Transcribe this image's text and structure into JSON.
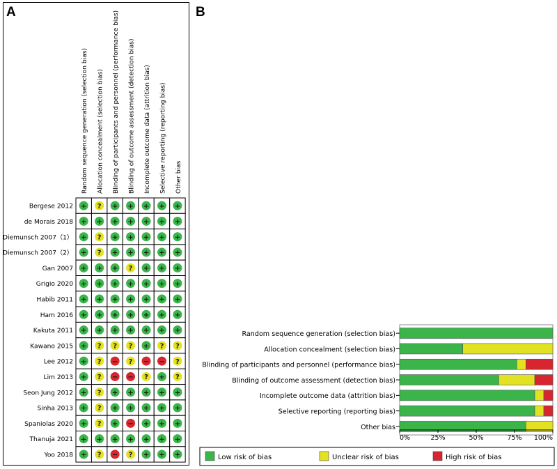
{
  "panel_a": {
    "label": "A",
    "domains": [
      "Random sequence generation (selection bias)",
      "Allocation concealment (selection bias)",
      "Blinding of participants and personnel (performance bias)",
      "Blinding of outcome assessment (detection bias)",
      "Incomplete outcome data (attrition bias)",
      "Selective reporting (reporting bias)",
      "Other bias"
    ],
    "studies": [
      {
        "name": "Bergese 2012",
        "ratings": [
          "low",
          "unclear",
          "low",
          "low",
          "low",
          "low",
          "low"
        ]
      },
      {
        "name": "de Morais 2018",
        "ratings": [
          "low",
          "low",
          "low",
          "low",
          "low",
          "low",
          "low"
        ]
      },
      {
        "name": "Diemunsch 2007（1）",
        "ratings": [
          "low",
          "unclear",
          "low",
          "low",
          "low",
          "low",
          "low"
        ]
      },
      {
        "name": "Diemunsch 2007（2）",
        "ratings": [
          "low",
          "unclear",
          "low",
          "low",
          "low",
          "low",
          "low"
        ]
      },
      {
        "name": "Gan 2007",
        "ratings": [
          "low",
          "low",
          "low",
          "unclear",
          "low",
          "low",
          "low"
        ]
      },
      {
        "name": "Grigio 2020",
        "ratings": [
          "low",
          "low",
          "low",
          "low",
          "low",
          "low",
          "low"
        ]
      },
      {
        "name": "Habib 2011",
        "ratings": [
          "low",
          "low",
          "low",
          "low",
          "low",
          "low",
          "low"
        ]
      },
      {
        "name": "Ham 2016",
        "ratings": [
          "low",
          "low",
          "low",
          "low",
          "low",
          "low",
          "low"
        ]
      },
      {
        "name": "Kakuta 2011",
        "ratings": [
          "low",
          "low",
          "low",
          "low",
          "low",
          "low",
          "low"
        ]
      },
      {
        "name": "Kawano 2015",
        "ratings": [
          "low",
          "unclear",
          "unclear",
          "unclear",
          "low",
          "unclear",
          "unclear"
        ]
      },
      {
        "name": "Lee 2012",
        "ratings": [
          "low",
          "unclear",
          "high",
          "unclear",
          "high",
          "high",
          "unclear"
        ]
      },
      {
        "name": "Lim 2013",
        "ratings": [
          "low",
          "unclear",
          "high",
          "high",
          "unclear",
          "low",
          "unclear"
        ]
      },
      {
        "name": "Seon Jung 2012",
        "ratings": [
          "low",
          "unclear",
          "low",
          "low",
          "low",
          "low",
          "low"
        ]
      },
      {
        "name": "Sinha 2013",
        "ratings": [
          "low",
          "unclear",
          "low",
          "low",
          "low",
          "low",
          "low"
        ]
      },
      {
        "name": "Spaniolas 2020",
        "ratings": [
          "low",
          "unclear",
          "low",
          "high",
          "low",
          "low",
          "low"
        ]
      },
      {
        "name": "Thanuja 2021",
        "ratings": [
          "low",
          "low",
          "low",
          "low",
          "low",
          "low",
          "low"
        ]
      },
      {
        "name": "Yoo 2018",
        "ratings": [
          "low",
          "unclear",
          "high",
          "unclear",
          "low",
          "low",
          "low"
        ]
      }
    ],
    "symbols": {
      "low": "+",
      "unclear": "?",
      "high": "−"
    }
  },
  "chart_data": {
    "type": "bar",
    "title": "B",
    "orientation": "horizontal-stacked-percent",
    "categories": [
      "Random sequence generation (selection bias)",
      "Allocation concealment (selection bias)",
      "Blinding of participants and personnel (performance bias)",
      "Blinding of outcome assessment (detection bias)",
      "Incomplete outcome data (attrition bias)",
      "Selective reporting (reporting bias)",
      "Other bias"
    ],
    "series": [
      {
        "name": "Low risk of bias",
        "color": "#3bb54a",
        "values": [
          100,
          41.2,
          76.5,
          64.7,
          88.2,
          88.2,
          82.4
        ]
      },
      {
        "name": "Unclear risk of bias",
        "color": "#e3e222",
        "values": [
          0,
          58.8,
          5.9,
          23.5,
          5.9,
          5.9,
          17.6
        ]
      },
      {
        "name": "High risk of bias",
        "color": "#d7262f",
        "values": [
          0,
          0,
          17.6,
          11.8,
          5.9,
          5.9,
          0
        ]
      }
    ],
    "xlim": [
      0,
      100
    ],
    "xticks": [
      "0%",
      "25%",
      "50%",
      "75%",
      "100%"
    ],
    "xlabel": "",
    "ylabel": "",
    "legend": "bottom"
  },
  "colors": {
    "low": "#3bb54a",
    "unclear": "#e3e222",
    "high": "#d7262f",
    "cell_border": "#000000"
  }
}
